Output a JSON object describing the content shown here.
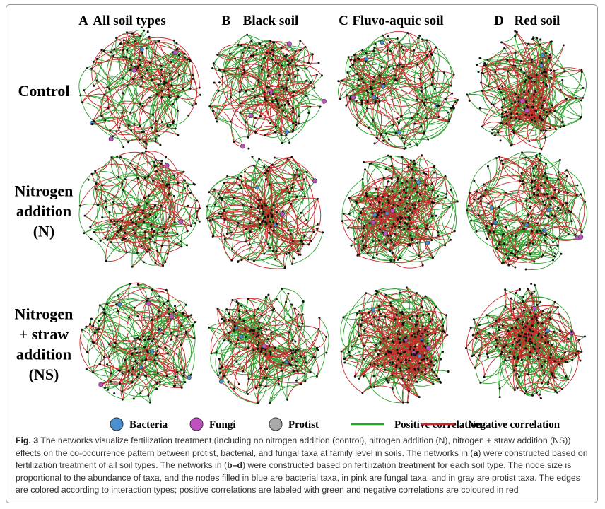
{
  "columns": [
    {
      "letter": "A",
      "title": "All soil types"
    },
    {
      "letter": "B",
      "title": "Black soil"
    },
    {
      "letter": "C",
      "title": "Fluvo-aquic soil"
    },
    {
      "letter": "D",
      "title": "Red soil"
    }
  ],
  "rows": [
    {
      "lines": [
        "Control"
      ]
    },
    {
      "lines": [
        "Nitrogen",
        "addition",
        "(N)"
      ]
    },
    {
      "lines": [
        "Nitrogen",
        "+ straw",
        "addition",
        "(NS)"
      ]
    }
  ],
  "legend": {
    "nodes": [
      "Bacteria",
      "Fungi",
      "Protist"
    ],
    "edges": [
      "Positive correlation",
      "Negative correlation"
    ]
  },
  "caption": {
    "label": "Fig. 3",
    "parts": [
      " The networks visualize fertilization treatment (including no nitrogen addition (control), nitrogen addition (N), nitrogen + straw addition (NS)) effects on the co-occurrence pattern between protist, bacterial, and fungal taxa at family level in soils. The networks in (",
      "a",
      ") were constructed based on fertilization treatment of all soil types. The networks in (",
      "b–d",
      ") were constructed based on fertilization treatment for each soil type. The node size is proportional to the abundance of taxa, and the nodes filled in blue are bacterial taxa, in pink are fungal taxa, and in gray are protist taxa. The edges are colored according to interaction types; positive correlations are labeled with green and negative correlations are coloured in red"
    ]
  }
}
